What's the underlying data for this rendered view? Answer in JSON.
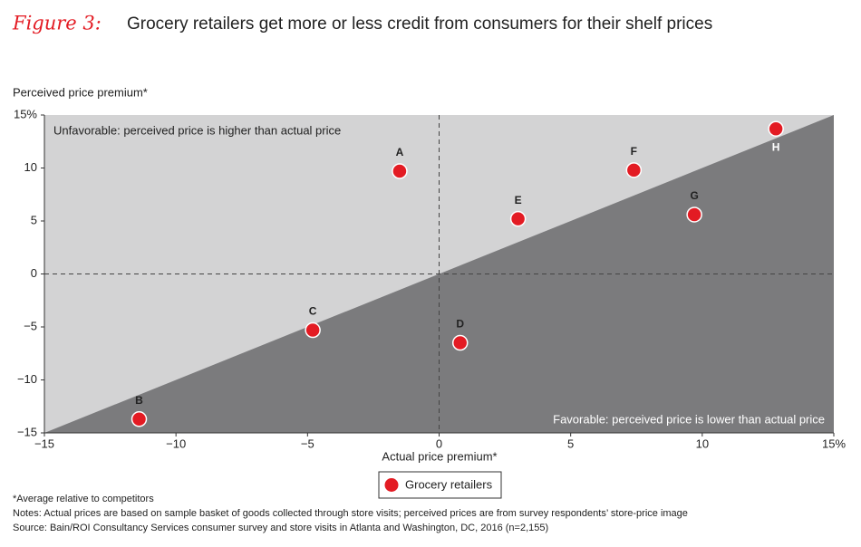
{
  "chart_data": {
    "type": "scatter",
    "title_prefix": "Figure 3:",
    "title": "Grocery retailers get more or less credit from consumers for their shelf prices",
    "ylabel": "Perceived price premium*",
    "xlabel": "Actual price premium*",
    "annotations": [
      "Unfavorable: perceived price is higher than actual price",
      "Favorable: perceived price is lower than actual price"
    ],
    "xlim": [
      -15,
      15
    ],
    "ylim": [
      -15,
      15
    ],
    "xticks": [
      {
        "value": -15,
        "label": "−15"
      },
      {
        "value": -10,
        "label": "−10"
      },
      {
        "value": -5,
        "label": "−5"
      },
      0,
      5,
      10,
      {
        "value": 15,
        "label": "15%"
      }
    ],
    "yticks": [
      {
        "value": -15,
        "label": "−15"
      },
      {
        "value": -10,
        "label": "−10"
      },
      {
        "value": -5,
        "label": "−5"
      },
      0,
      5,
      10,
      {
        "value": 15,
        "label": "15%"
      }
    ],
    "series": [
      {
        "name": "Grocery retailers",
        "color": "#e31b23",
        "labels": [
          "A",
          "B",
          "C",
          "D",
          "E",
          "F",
          "G",
          "H"
        ],
        "x": [
          -1.5,
          -11.4,
          -4.8,
          0.8,
          3.0,
          7.4,
          9.7,
          12.8
        ],
        "values": [
          9.7,
          -13.7,
          -5.3,
          -6.5,
          5.2,
          9.8,
          5.6,
          13.7
        ]
      }
    ],
    "notes": [
      "*Average relative to competitors",
      "Notes: Actual prices are based on sample basket of goods collected through store visits; perceived prices are from survey respondents’ store-price image",
      "Source: Bain/ROI Consultancy Services consumer survey and store visits in Atlanta and Washington, DC, 2016 (n=2,155)"
    ]
  }
}
